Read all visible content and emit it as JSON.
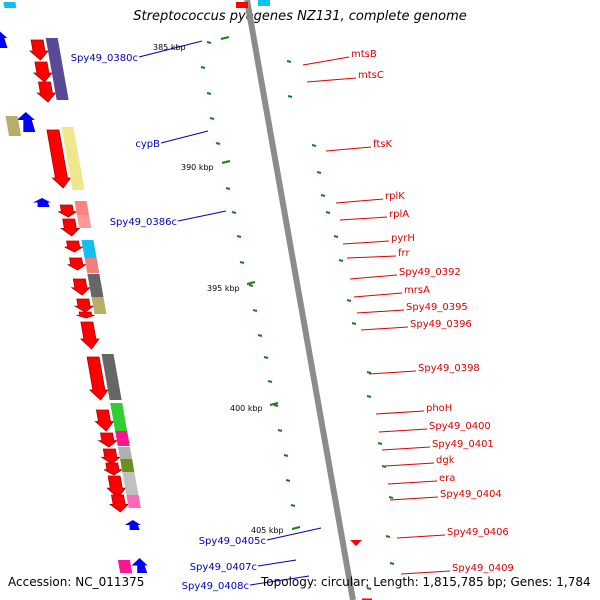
{
  "title": "Streptococcus pyogenes NZ131, complete genome",
  "footer": {
    "accession": "Accession: NC_011375",
    "topology": "Topology: circular; Length: 1,815,785 bp; Genes: 1,784"
  },
  "colors": {
    "backbone": "#8c8c8c",
    "forward_label": "#dd0000",
    "reverse_label": "#0000b4",
    "tick": "#1e7a1e"
  },
  "scale_labels": [
    "385 kbp",
    "390 kbp",
    "395 kbp",
    "400 kbp",
    "405 kbp"
  ],
  "genes_forward": [
    "mtsB",
    "mtsC",
    "ftsK",
    "rplK",
    "rplA",
    "pyrH",
    "frr",
    "Spy49_0392",
    "mrsA",
    "Spy49_0395",
    "Spy49_0396",
    "Spy49_0398",
    "phoH",
    "Spy49_0400",
    "Spy49_0401",
    "dgk",
    "era",
    "Spy49_0404",
    "Spy49_0406",
    "Spy49_0409"
  ],
  "genes_reverse": [
    "Spy49_0380c",
    "cypB",
    "Spy49_0386c",
    "Spy49_0405c",
    "Spy49_0407c",
    "Spy49_0408c"
  ]
}
